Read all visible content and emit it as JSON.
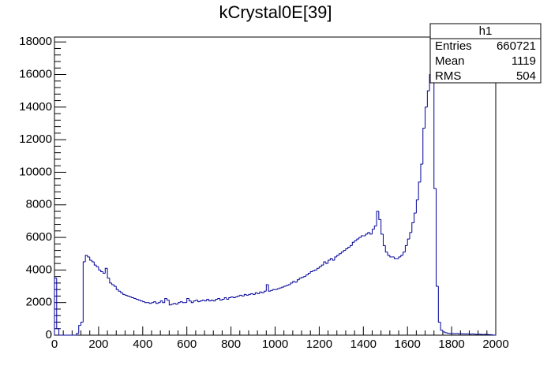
{
  "chart_data": {
    "type": "histogram",
    "title": "kCrystal0E[39]",
    "color": "#000099",
    "bins": [
      0,
      10,
      20,
      30,
      40,
      50,
      60,
      70,
      80,
      90,
      100,
      110,
      120,
      130,
      140,
      150,
      160,
      170,
      180,
      190,
      200,
      210,
      220,
      230,
      240,
      250,
      260,
      270,
      280,
      290,
      300,
      310,
      320,
      330,
      340,
      350,
      360,
      370,
      380,
      390,
      400,
      410,
      420,
      430,
      440,
      450,
      460,
      470,
      480,
      490,
      500,
      510,
      520,
      530,
      540,
      550,
      560,
      570,
      580,
      590,
      600,
      610,
      620,
      630,
      640,
      650,
      660,
      670,
      680,
      690,
      700,
      710,
      720,
      730,
      740,
      750,
      760,
      770,
      780,
      790,
      800,
      810,
      820,
      830,
      840,
      850,
      860,
      870,
      880,
      890,
      900,
      910,
      920,
      930,
      940,
      950,
      960,
      970,
      980,
      990,
      1000,
      1010,
      1020,
      1030,
      1040,
      1050,
      1060,
      1070,
      1080,
      1090,
      1100,
      1110,
      1120,
      1130,
      1140,
      1150,
      1160,
      1170,
      1180,
      1190,
      1200,
      1210,
      1220,
      1230,
      1240,
      1250,
      1260,
      1270,
      1280,
      1290,
      1300,
      1310,
      1320,
      1330,
      1340,
      1350,
      1360,
      1370,
      1380,
      1390,
      1400,
      1410,
      1420,
      1430,
      1440,
      1450,
      1460,
      1470,
      1480,
      1490,
      1500,
      1510,
      1520,
      1530,
      1540,
      1550,
      1560,
      1570,
      1580,
      1590,
      1600,
      1610,
      1620,
      1630,
      1640,
      1650,
      1660,
      1670,
      1680,
      1690,
      1700,
      1710,
      1720,
      1730,
      1740,
      1750,
      1760,
      1770,
      1780,
      1790,
      1800,
      1810,
      1820,
      1830,
      1840,
      1850,
      1860,
      1870,
      1880,
      1890,
      1900,
      1910,
      1920,
      1930,
      1940,
      1950,
      1960,
      1970,
      1980,
      1990,
      2000
    ],
    "values": [
      3500,
      400,
      0,
      0,
      0,
      0,
      0,
      0,
      0,
      0,
      100,
      600,
      800,
      4500,
      4900,
      4800,
      4600,
      4500,
      4300,
      4200,
      4000,
      3900,
      3800,
      4100,
      3500,
      3200,
      3100,
      3000,
      2800,
      2700,
      2600,
      2500,
      2450,
      2400,
      2350,
      2300,
      2250,
      2200,
      2150,
      2100,
      2050,
      2000,
      2000,
      1950,
      2000,
      2050,
      1950,
      2000,
      2100,
      2000,
      2250,
      2150,
      1850,
      1900,
      1950,
      1900,
      2000,
      2050,
      2000,
      2000,
      2250,
      2100,
      2000,
      2100,
      2150,
      2050,
      2100,
      2150,
      2100,
      2200,
      2100,
      2150,
      2100,
      2200,
      2250,
      2150,
      2200,
      2300,
      2200,
      2300,
      2350,
      2300,
      2350,
      2400,
      2450,
      2400,
      2500,
      2450,
      2500,
      2550,
      2500,
      2600,
      2550,
      2650,
      2600,
      2700,
      3100,
      2700,
      2750,
      2800,
      2800,
      2850,
      2900,
      2950,
      3000,
      3050,
      3100,
      3200,
      3300,
      3250,
      3400,
      3500,
      3550,
      3600,
      3700,
      3800,
      3900,
      3950,
      4000,
      4100,
      4200,
      4300,
      4500,
      4400,
      4600,
      4700,
      4600,
      4800,
      4900,
      5000,
      5100,
      5200,
      5300,
      5400,
      5500,
      5700,
      5800,
      5900,
      6000,
      6100,
      6100,
      6200,
      6300,
      6200,
      6500,
      6700,
      7600,
      7100,
      6200,
      5500,
      5100,
      4900,
      4800,
      4800,
      4700,
      4700,
      4800,
      4900,
      5100,
      5500,
      5900,
      6300,
      6900,
      7500,
      8300,
      9400,
      10500,
      12700,
      14000,
      15000,
      16000,
      17400,
      9000,
      3000,
      800,
      300,
      200,
      150,
      120,
      100,
      100,
      90,
      100,
      80,
      90,
      80,
      70,
      80,
      60,
      70,
      60,
      50,
      60,
      50,
      40,
      50,
      40,
      30,
      20,
      0
    ],
    "xlim": [
      0,
      2000
    ],
    "xticks": [
      0,
      200,
      400,
      600,
      800,
      1000,
      1200,
      1400,
      1600,
      1800,
      2000
    ],
    "ylim": [
      0,
      18300
    ],
    "yticks": [
      0,
      2000,
      4000,
      6000,
      8000,
      10000,
      12000,
      14000,
      16000,
      18000
    ],
    "stats": {
      "title": "h1",
      "rows": [
        {
          "label": "Entries",
          "value": 660721
        },
        {
          "label": "Mean",
          "value": 1119
        },
        {
          "label": "RMS",
          "value": 504
        }
      ]
    }
  }
}
